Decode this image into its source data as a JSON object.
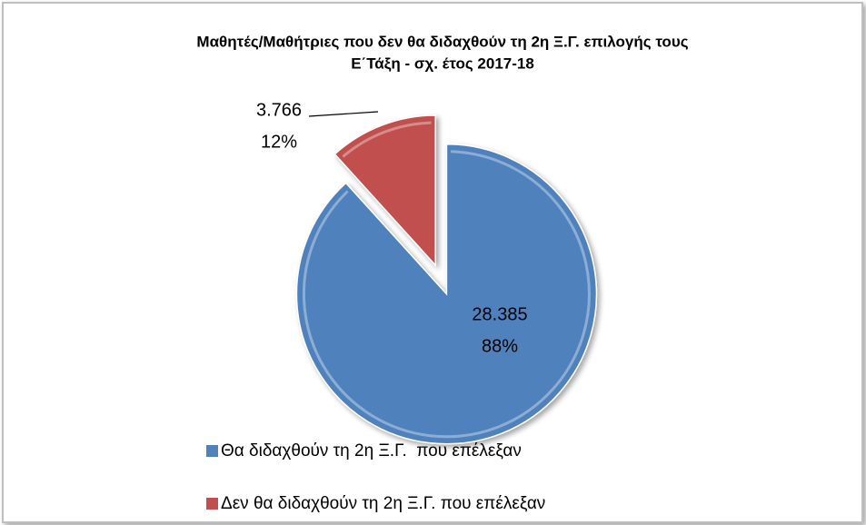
{
  "chart_data": {
    "type": "pie",
    "title": "Μαθητές/Μαθήτριες που δεν θα διδαχθούν τη 2η Ξ.Γ. επιλογής τους",
    "subtitle": "Ε΄Τάξη - σχ. έτος 2017-18",
    "categories": [
      "Θα διδαχθούν τη 2η Ξ.Γ.  που επέλεξαν",
      "Δεν θα διδαχθούν τη 2η Ξ.Γ. που επέλεξαν"
    ],
    "values": [
      28385,
      3766
    ],
    "value_labels": [
      "28.385",
      "3.766"
    ],
    "percentages": [
      88,
      12
    ],
    "percentage_labels": [
      "88%",
      "12%"
    ],
    "colors": [
      "#4f81bd",
      "#c0504d"
    ],
    "legend": "bottom"
  }
}
